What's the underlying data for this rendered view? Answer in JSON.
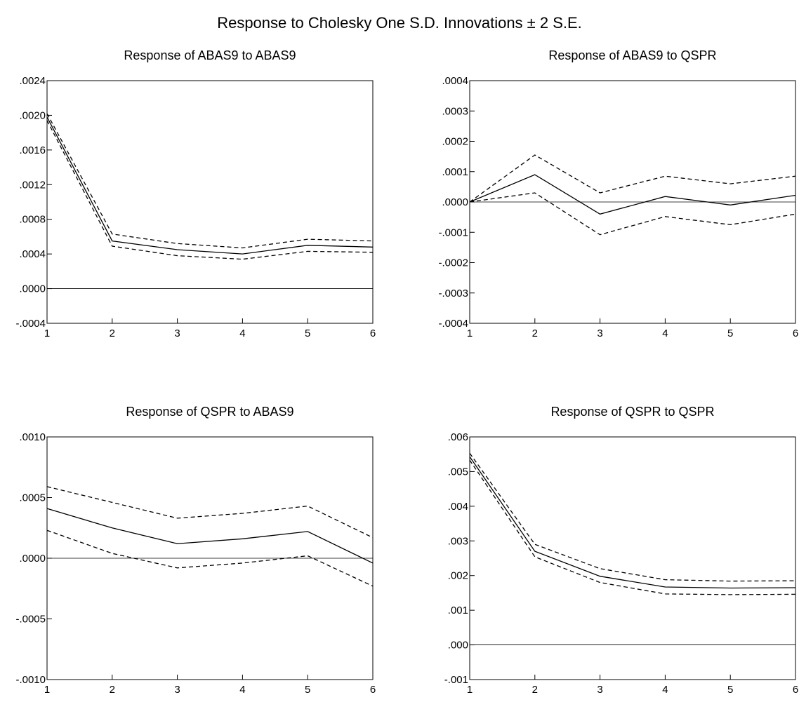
{
  "figure": {
    "title": "Response to Cholesky One S.D. Innovations ± 2 S.E."
  },
  "chart_data": [
    {
      "type": "line",
      "title": "Response of ABAS9 to ABAS9",
      "x": [
        1,
        2,
        3,
        4,
        5,
        6
      ],
      "ylim": [
        -0.0004,
        0.0024
      ],
      "yticks": [
        -0.0004,
        0.0,
        0.0004,
        0.0008,
        0.0012,
        0.0016,
        0.002,
        0.0024
      ],
      "ytick_labels": [
        "-.0004",
        ".0000",
        ".0004",
        ".0008",
        ".0012",
        ".0016",
        ".0020",
        ".0024"
      ],
      "zero_line": true,
      "series": [
        {
          "style": "dashed",
          "values": [
            0.00202,
            0.00063,
            0.00052,
            0.00047,
            0.00057,
            0.00055
          ]
        },
        {
          "style": "solid",
          "values": [
            0.00198,
            0.00055,
            0.00045,
            0.0004,
            0.0005,
            0.00048
          ]
        },
        {
          "style": "dashed",
          "values": [
            0.00194,
            0.00049,
            0.00038,
            0.00034,
            0.00043,
            0.00042
          ]
        }
      ]
    },
    {
      "type": "line",
      "title": "Response of ABAS9 to QSPR",
      "x": [
        1,
        2,
        3,
        4,
        5,
        6
      ],
      "ylim": [
        -0.0004,
        0.0004
      ],
      "yticks": [
        -0.0004,
        -0.0003,
        -0.0002,
        -0.0001,
        0.0,
        0.0001,
        0.0002,
        0.0003,
        0.0004
      ],
      "ytick_labels": [
        "-.0004",
        "-.0003",
        "-.0002",
        "-.0001",
        ".0000",
        ".0001",
        ".0002",
        ".0003",
        ".0004"
      ],
      "zero_line": true,
      "series": [
        {
          "style": "dashed",
          "values": [
            0.0,
            0.000155,
            3e-05,
            8.5e-05,
            6e-05,
            8.5e-05
          ]
        },
        {
          "style": "solid",
          "values": [
            0.0,
            9e-05,
            -4e-05,
            1.8e-05,
            -1e-05,
            2.2e-05
          ]
        },
        {
          "style": "dashed",
          "values": [
            0.0,
            3e-05,
            -0.000108,
            -4.8e-05,
            -7.5e-05,
            -4e-05
          ]
        }
      ]
    },
    {
      "type": "line",
      "title": "Response of QSPR to ABAS9",
      "x": [
        1,
        2,
        3,
        4,
        5,
        6
      ],
      "ylim": [
        -0.001,
        0.001
      ],
      "yticks": [
        -0.001,
        -0.0005,
        0.0,
        0.0005,
        0.001
      ],
      "ytick_labels": [
        "-.0010",
        "-.0005",
        ".0000",
        ".0005",
        ".0010"
      ],
      "zero_line": true,
      "series": [
        {
          "style": "dashed",
          "values": [
            0.00059,
            0.00046,
            0.00033,
            0.00037,
            0.00043,
            0.00017
          ]
        },
        {
          "style": "solid",
          "values": [
            0.00041,
            0.00025,
            0.00012,
            0.00016,
            0.00022,
            -4e-05
          ]
        },
        {
          "style": "dashed",
          "values": [
            0.00023,
            4e-05,
            -8e-05,
            -4e-05,
            2e-05,
            -0.00023
          ]
        }
      ]
    },
    {
      "type": "line",
      "title": "Response of QSPR to QSPR",
      "x": [
        1,
        2,
        3,
        4,
        5,
        6
      ],
      "ylim": [
        -0.001,
        0.006
      ],
      "yticks": [
        -0.001,
        0.0,
        0.001,
        0.002,
        0.003,
        0.004,
        0.005,
        0.006
      ],
      "ytick_labels": [
        "-.001",
        ".000",
        ".001",
        ".002",
        ".003",
        ".004",
        ".005",
        ".006"
      ],
      "zero_line": true,
      "series": [
        {
          "style": "dashed",
          "values": [
            0.00553,
            0.0029,
            0.0022,
            0.00188,
            0.00184,
            0.00185
          ]
        },
        {
          "style": "solid",
          "values": [
            0.00543,
            0.0027,
            0.00198,
            0.00167,
            0.00164,
            0.00165
          ]
        },
        {
          "style": "dashed",
          "values": [
            0.00533,
            0.00254,
            0.0018,
            0.00147,
            0.00145,
            0.00146
          ]
        }
      ]
    }
  ]
}
